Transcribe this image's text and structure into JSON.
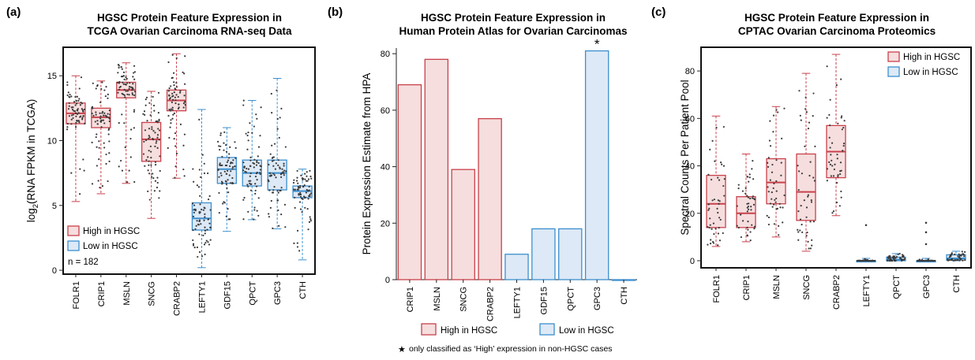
{
  "colors": {
    "high": "#c8414b",
    "high_fill": "#f6dede",
    "low": "#3c8fcf",
    "low_fill": "#dde9f6",
    "dot": "#3a3a3a"
  },
  "chart_data": [
    {
      "panel": "(a)",
      "type": "box",
      "title": [
        "HGSC Protein Feature Expression in",
        "TCGA Ovarian Carcinoma RNA-seq Data"
      ],
      "ylabel": "log2(RNA FPKM in TCGA)",
      "ylim": [
        -0.3,
        17.2
      ],
      "yticks": [
        0,
        5,
        10,
        15
      ],
      "categories": [
        "FOLR1",
        "CRIP1",
        "MSLN",
        "SNCG",
        "CRABP2",
        "LEFTY1",
        "GDF15",
        "QPCT",
        "GPC3",
        "CTH"
      ],
      "groups": [
        "high",
        "high",
        "high",
        "high",
        "high",
        "low",
        "low",
        "low",
        "low",
        "low"
      ],
      "boxes": [
        {
          "q1": 11.3,
          "median": 12.1,
          "q3": 12.9,
          "min": 5.3,
          "max": 15.0
        },
        {
          "q1": 11.0,
          "median": 11.8,
          "q3": 12.5,
          "min": 5.9,
          "max": 14.6
        },
        {
          "q1": 13.3,
          "median": 13.9,
          "q3": 14.5,
          "min": 6.7,
          "max": 16.0
        },
        {
          "q1": 8.4,
          "median": 10.1,
          "q3": 11.4,
          "min": 4.0,
          "max": 13.8
        },
        {
          "q1": 12.3,
          "median": 13.1,
          "q3": 13.9,
          "min": 7.1,
          "max": 16.7
        },
        {
          "q1": 3.1,
          "median": 4.0,
          "q3": 5.2,
          "min": 0.2,
          "max": 12.4
        },
        {
          "q1": 6.7,
          "median": 7.8,
          "q3": 8.7,
          "min": 3.0,
          "max": 11.0
        },
        {
          "q1": 6.5,
          "median": 7.5,
          "q3": 8.5,
          "min": 3.9,
          "max": 13.1
        },
        {
          "q1": 6.2,
          "median": 7.5,
          "q3": 8.5,
          "min": 3.2,
          "max": 14.8
        },
        {
          "q1": 5.6,
          "median": 6.1,
          "q3": 6.5,
          "min": 0.8,
          "max": 7.8
        }
      ],
      "legend": [
        {
          "label": "High in HGSC",
          "group": "high"
        },
        {
          "label": "Low in HGSC",
          "group": "low"
        }
      ],
      "note": "n = 182",
      "n_points": 182
    },
    {
      "panel": "(b)",
      "type": "bar",
      "title": [
        "HGSC Protein Feature Expression in",
        "Human Protein Atlas for Ovarian Carcinomas"
      ],
      "ylabel": "Protein Expression Estimate from HPA",
      "ylim": [
        0,
        82
      ],
      "yticks": [
        0,
        20,
        40,
        60,
        80
      ],
      "categories": [
        "CRIP1",
        "MSLN",
        "SNCG",
        "CRABP2",
        "LEFTY1",
        "GDF15",
        "QPCT",
        "GPC3",
        "CTH"
      ],
      "groups": [
        "high",
        "high",
        "high",
        "high",
        "low",
        "low",
        "low",
        "low",
        "low"
      ],
      "values": [
        69,
        78,
        39,
        57,
        9,
        18,
        18,
        81,
        0
      ],
      "star_category": "GPC3",
      "star": "*",
      "legend": [
        {
          "label": "High in HGSC",
          "group": "high"
        },
        {
          "label": "Low in HGSC",
          "group": "low"
        }
      ],
      "footnote_star": "★",
      "footnote": "only classified as ‘High’ expression in non-HGSC cases"
    },
    {
      "panel": "(c)",
      "type": "box",
      "title": [
        "HGSC Protein Feature Expression in",
        "CPTAC Ovarian Carcinoma Proteomics"
      ],
      "ylabel": "Spectral Counts Per Patient Pool",
      "ylim": [
        -3,
        90
      ],
      "yticks": [
        0,
        20,
        40,
        60,
        80
      ],
      "categories": [
        "FOLR1",
        "CRIP1",
        "MSLN",
        "SNCG",
        "CRABP2",
        "LEFTY1",
        "QPCT",
        "GPC3",
        "CTH"
      ],
      "groups": [
        "high",
        "high",
        "high",
        "high",
        "high",
        "low",
        "low",
        "low",
        "low"
      ],
      "boxes": [
        {
          "q1": 14,
          "median": 24,
          "q3": 36,
          "min": 6,
          "max": 61
        },
        {
          "q1": 14,
          "median": 20,
          "q3": 27,
          "min": 8,
          "max": 45
        },
        {
          "q1": 24,
          "median": 33,
          "q3": 43,
          "min": 10,
          "max": 65
        },
        {
          "q1": 17,
          "median": 29,
          "q3": 45,
          "min": 4,
          "max": 79
        },
        {
          "q1": 35,
          "median": 46,
          "q3": 57,
          "min": 19,
          "max": 87
        },
        {
          "q1": 0,
          "median": 0,
          "q3": 0,
          "min": 0,
          "max": 1
        },
        {
          "q1": 0,
          "median": 0.5,
          "q3": 1.5,
          "min": 0,
          "max": 3
        },
        {
          "q1": 0,
          "median": 0,
          "q3": 0,
          "min": 0,
          "max": 1
        },
        {
          "q1": 0.3,
          "median": 1,
          "q3": 2.5,
          "min": 0,
          "max": 4
        }
      ],
      "outliers": [
        {
          "category": "LEFTY1",
          "values": [
            15
          ]
        },
        {
          "category": "GPC3",
          "values": [
            7,
            12,
            16
          ]
        }
      ],
      "legend": [
        {
          "label": "High in HGSC",
          "group": "high"
        },
        {
          "label": "Low in HGSC",
          "group": "low"
        }
      ],
      "n_points": 80
    }
  ]
}
